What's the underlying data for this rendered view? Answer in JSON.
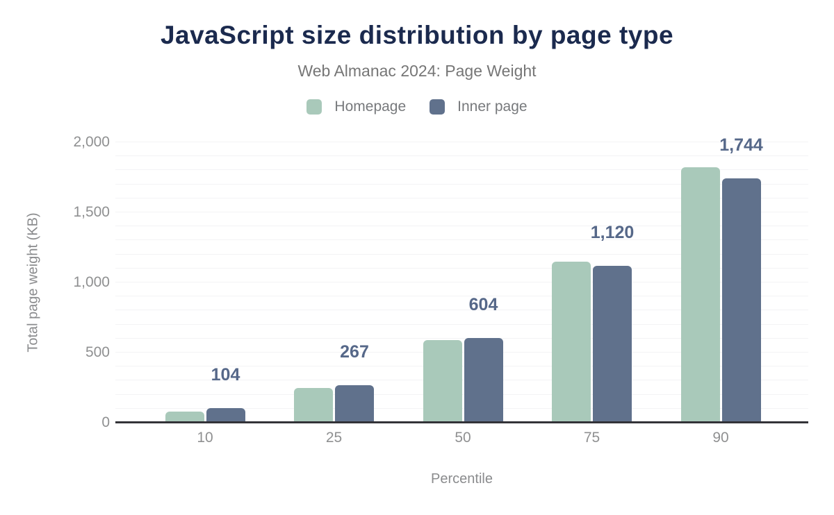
{
  "chart_data": {
    "type": "bar",
    "title": "JavaScript size distribution by page type",
    "subtitle": "Web Almanac 2024: Page Weight",
    "xlabel": "Percentile",
    "ylabel": "Total page weight (KB)",
    "categories": [
      "10",
      "25",
      "50",
      "75",
      "90"
    ],
    "series": [
      {
        "name": "Homepage",
        "color": "#a9c9ba",
        "values": [
          80,
          250,
          588,
          1149,
          1820
        ]
      },
      {
        "name": "Inner page",
        "color": "#60718c",
        "values": [
          104,
          267,
          604,
          1120,
          1744
        ]
      }
    ],
    "data_labels": [
      "104",
      "267",
      "604",
      "1,120",
      "1,744"
    ],
    "data_labels_series": "Inner page",
    "data_label_color": "#566889",
    "ylim": [
      0,
      2000
    ],
    "ytick_values": [
      0,
      500,
      1000,
      1500,
      2000
    ],
    "ytick_labels": [
      "0",
      "500",
      "1,000",
      "1,500",
      "2,000"
    ],
    "minor_grid_step": 100,
    "grid": "horizontal",
    "legend_position": "top",
    "title_color": "#1b2a4e",
    "subtitle_color": "#767676",
    "axis_text_color": "#8f9091",
    "axis_line_color": "#333338",
    "gridline_color": "#f3f3f5"
  }
}
